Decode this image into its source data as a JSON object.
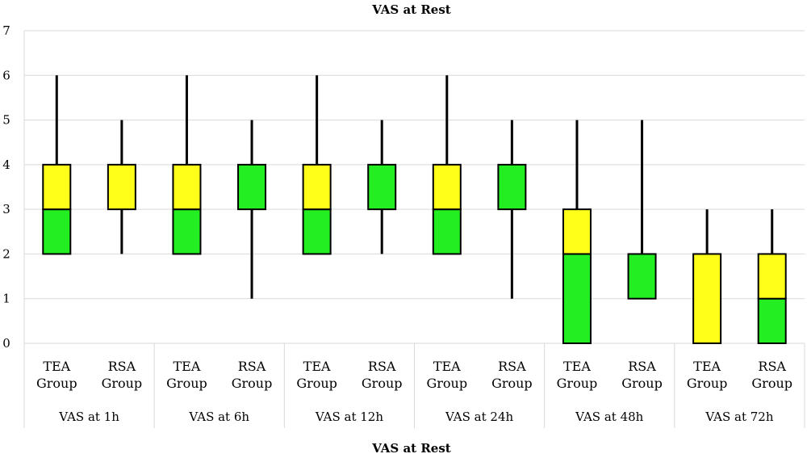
{
  "chart_data": {
    "type": "box",
    "title": "VAS at Rest",
    "xlabel": "VAS at Rest",
    "ylabel": "",
    "ylim": [
      0,
      7
    ],
    "yticks": [
      0,
      1,
      2,
      3,
      4,
      5,
      6,
      7
    ],
    "grid": true,
    "colors": {
      "upper_box": "#ffff1a",
      "lower_box": "#22ee22",
      "outline": "#000000",
      "grid": "#d9d9d9"
    },
    "groups": [
      {
        "label": "VAS at 1h",
        "boxes": [
          {
            "label": "TEA Group",
            "min": 2,
            "q1": 2,
            "median": 3,
            "q3": 4,
            "max": 6
          },
          {
            "label": "RSA Group",
            "min": 2,
            "q1": 3,
            "median": 3,
            "q3": 4,
            "max": 5
          }
        ]
      },
      {
        "label": "VAS at 6h",
        "boxes": [
          {
            "label": "TEA Group",
            "min": 2,
            "q1": 2,
            "median": 3,
            "q3": 4,
            "max": 6
          },
          {
            "label": "RSA Group",
            "min": 1,
            "q1": 3,
            "median": 4,
            "q3": 4,
            "max": 5
          }
        ]
      },
      {
        "label": "VAS at 12h",
        "boxes": [
          {
            "label": "TEA Group",
            "min": 2,
            "q1": 2,
            "median": 3,
            "q3": 4,
            "max": 6
          },
          {
            "label": "RSA Group",
            "min": 2,
            "q1": 3,
            "median": 4,
            "q3": 4,
            "max": 5
          }
        ]
      },
      {
        "label": "VAS at 24h",
        "boxes": [
          {
            "label": "TEA Group",
            "min": 2,
            "q1": 2,
            "median": 3,
            "q3": 4,
            "max": 6
          },
          {
            "label": "RSA Group",
            "min": 1,
            "q1": 3,
            "median": 4,
            "q3": 4,
            "max": 5
          }
        ]
      },
      {
        "label": "VAS at 48h",
        "boxes": [
          {
            "label": "TEA Group",
            "min": 0,
            "q1": 0,
            "median": 2,
            "q3": 3,
            "max": 5
          },
          {
            "label": "RSA Group",
            "min": 1,
            "q1": 1,
            "median": 2,
            "q3": 2,
            "max": 5
          }
        ]
      },
      {
        "label": "VAS at 72h",
        "boxes": [
          {
            "label": "TEA Group",
            "min": 0,
            "q1": 0,
            "median": 0,
            "q3": 2,
            "max": 3
          },
          {
            "label": "RSA Group",
            "min": 0,
            "q1": 0,
            "median": 1,
            "q3": 2,
            "max": 3
          }
        ]
      }
    ]
  }
}
